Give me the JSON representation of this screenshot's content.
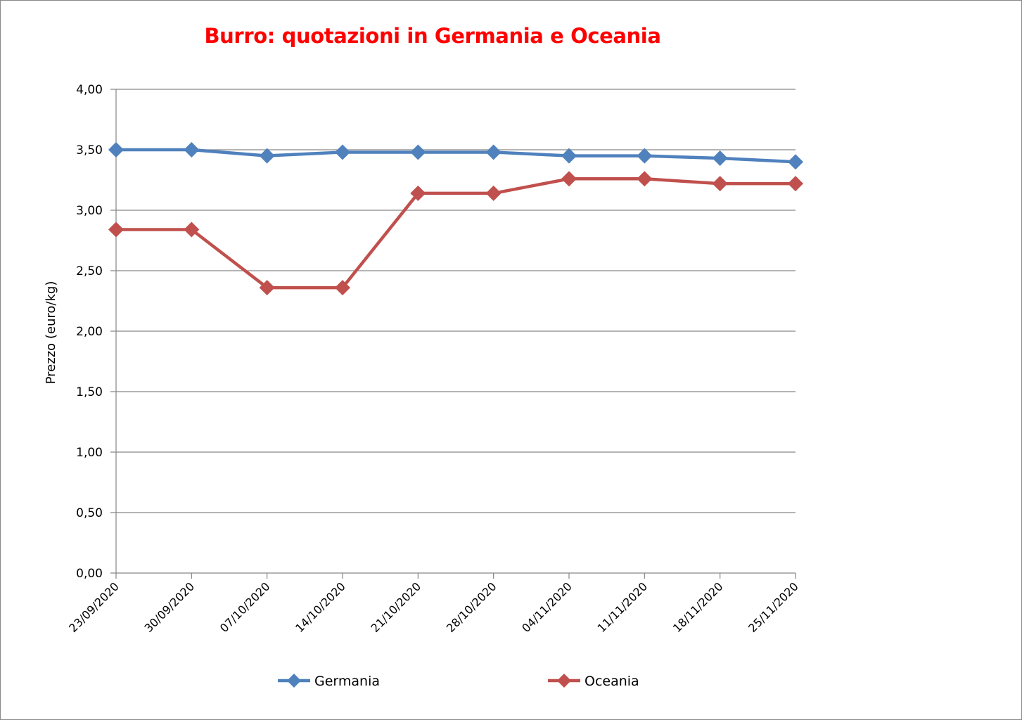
{
  "chart_data": {
    "type": "line",
    "title": "Burro: quotazioni in Germania e Oceania",
    "xlabel": "",
    "ylabel": "Prezzo (euro/kg)",
    "categories": [
      "23/09/2020",
      "30/09/2020",
      "07/10/2020",
      "14/10/2020",
      "21/10/2020",
      "28/10/2020",
      "04/11/2020",
      "11/11/2020",
      "18/11/2020",
      "25/11/2020"
    ],
    "ylim": [
      0,
      4
    ],
    "yticks": [
      "0,00",
      "0,50",
      "1,00",
      "1,50",
      "2,00",
      "2,50",
      "3,00",
      "3,50",
      "4,00"
    ],
    "ytick_values": [
      0,
      0.5,
      1,
      1.5,
      2,
      2.5,
      3,
      3.5,
      4
    ],
    "grid": true,
    "legend_position": "bottom",
    "series": [
      {
        "name": "Germania",
        "color": "#4f81bd",
        "values": [
          3.5,
          3.5,
          3.45,
          3.48,
          3.48,
          3.48,
          3.45,
          3.45,
          3.43,
          3.4
        ]
      },
      {
        "name": "Oceania",
        "color": "#c0504d",
        "values": [
          2.84,
          2.84,
          2.36,
          2.36,
          3.14,
          3.14,
          3.26,
          3.26,
          3.22,
          3.22
        ]
      }
    ]
  }
}
